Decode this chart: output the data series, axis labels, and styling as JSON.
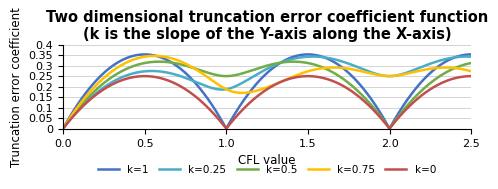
{
  "title": "Two dimensional truncation error coefficient function",
  "subtitle": "(k is the slope of the Y-axis along the X-axis)",
  "xlabel": "CFL value",
  "ylabel": "Truncation error coefficient",
  "xlim": [
    0,
    2.5
  ],
  "ylim": [
    0,
    0.4
  ],
  "yticks": [
    0,
    0.05,
    0.1,
    0.15,
    0.2,
    0.25,
    0.3,
    0.35,
    0.4
  ],
  "xticks": [
    0,
    0.5,
    1.0,
    1.5,
    2.0,
    2.5
  ],
  "series": [
    {
      "label": "k=1",
      "color": "#4472C4",
      "k": 1.0
    },
    {
      "label": "k=0.25",
      "color": "#4BACC6",
      "k": 0.25
    },
    {
      "label": "k=0.5",
      "color": "#70AD47",
      "k": 0.5
    },
    {
      "label": "k=0.75",
      "color": "#FFC000",
      "k": 0.75
    },
    {
      "label": "k=0",
      "color": "#C0504D",
      "k": 0.0
    }
  ],
  "background_color": "#ffffff",
  "grid_color": "#d3d3d3",
  "title_fontsize": 10.5,
  "subtitle_fontsize": 8.5,
  "axis_label_fontsize": 8.5,
  "tick_fontsize": 8,
  "legend_fontsize": 7.5,
  "linewidth": 1.8
}
